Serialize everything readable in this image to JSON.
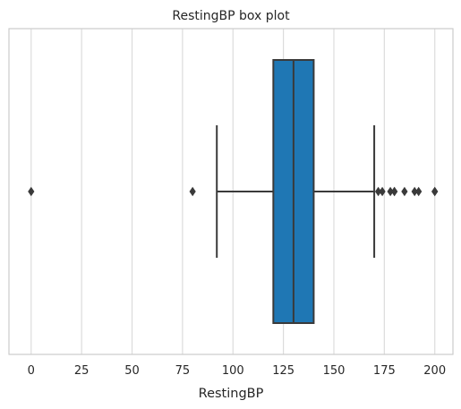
{
  "chart_data": {
    "type": "box",
    "title": "RestingBP box plot",
    "xlabel": "RestingBP",
    "ylabel": "",
    "orientation": "horizontal",
    "xlim": [
      -11,
      209
    ],
    "xticks": [
      0,
      25,
      50,
      75,
      100,
      125,
      150,
      175,
      200
    ],
    "grid": "vertical",
    "box": {
      "min_whisker": 92,
      "q1": 120,
      "median": 130,
      "q3": 140,
      "max_whisker": 170,
      "fill_color": "#1f77b4",
      "line_color": "#3a3a3a"
    },
    "outliers": [
      0,
      80,
      172,
      174,
      178,
      180,
      180,
      185,
      190,
      192,
      200,
      200
    ]
  }
}
